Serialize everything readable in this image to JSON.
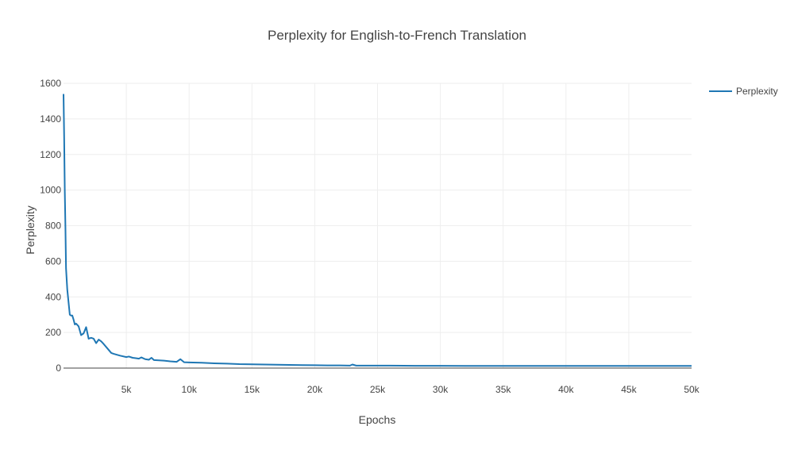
{
  "chart_data": {
    "type": "line",
    "title": "Perplexity for English-to-French Translation",
    "xlabel": "Epochs",
    "ylabel": "Perplexity",
    "xlim": [
      0,
      50000
    ],
    "ylim": [
      0,
      1600
    ],
    "x_ticks": [
      {
        "value": 5000,
        "label": "5k"
      },
      {
        "value": 10000,
        "label": "10k"
      },
      {
        "value": 15000,
        "label": "15k"
      },
      {
        "value": 20000,
        "label": "20k"
      },
      {
        "value": 25000,
        "label": "25k"
      },
      {
        "value": 30000,
        "label": "30k"
      },
      {
        "value": 35000,
        "label": "35k"
      },
      {
        "value": 40000,
        "label": "40k"
      },
      {
        "value": 45000,
        "label": "45k"
      },
      {
        "value": 50000,
        "label": "50k"
      }
    ],
    "y_ticks": [
      {
        "value": 0,
        "label": "0"
      },
      {
        "value": 200,
        "label": "200"
      },
      {
        "value": 400,
        "label": "400"
      },
      {
        "value": 600,
        "label": "600"
      },
      {
        "value": 800,
        "label": "800"
      },
      {
        "value": 1000,
        "label": "1000"
      },
      {
        "value": 1200,
        "label": "1200"
      },
      {
        "value": 1400,
        "label": "1400"
      },
      {
        "value": 1600,
        "label": "1600"
      }
    ],
    "grid": true,
    "legend_position": "top-right",
    "series": [
      {
        "name": "Perplexity",
        "color": "#1f77b4",
        "x": [
          0,
          50,
          100,
          150,
          200,
          300,
          400,
          500,
          600,
          700,
          800,
          900,
          1000,
          1200,
          1400,
          1600,
          1800,
          2000,
          2200,
          2400,
          2600,
          2800,
          3000,
          3200,
          3500,
          3800,
          4000,
          4500,
          5000,
          5200,
          5500,
          5800,
          6000,
          6200,
          6500,
          6800,
          7000,
          7200,
          8000,
          8500,
          9000,
          9300,
          9600,
          10000,
          11000,
          12000,
          13000,
          14000,
          15000,
          16000,
          17000,
          18000,
          19000,
          20000,
          21000,
          22000,
          22800,
          23000,
          23300,
          24000,
          26000,
          28000,
          30000,
          32000,
          35000,
          40000,
          45000,
          50000
        ],
        "values": [
          1540,
          1300,
          1000,
          800,
          560,
          440,
          370,
          300,
          295,
          295,
          272,
          245,
          250,
          235,
          185,
          195,
          230,
          165,
          170,
          165,
          140,
          160,
          150,
          135,
          110,
          85,
          80,
          70,
          62,
          65,
          58,
          55,
          53,
          60,
          50,
          47,
          58,
          45,
          42,
          38,
          35,
          50,
          33,
          32,
          30,
          27,
          25,
          22,
          21,
          20,
          19,
          18,
          17,
          16,
          15,
          15,
          14,
          20,
          14,
          14,
          14,
          13,
          13,
          12,
          12,
          12,
          12,
          12
        ]
      }
    ]
  }
}
